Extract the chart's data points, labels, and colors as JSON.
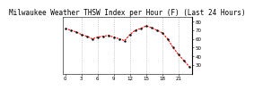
{
  "title": "Milwaukee Weather THSW Index per Hour (F) (Last 24 Hours)",
  "background_color": "#ffffff",
  "plot_bg_color": "#ffffff",
  "line_color": "#ff0000",
  "marker_color": "#000000",
  "grid_color": "#aaaaaa",
  "y_values": [
    72,
    70,
    68,
    65,
    63,
    60,
    62,
    63,
    64,
    62,
    60,
    58,
    65,
    70,
    72,
    75,
    73,
    70,
    67,
    60,
    50,
    42,
    35,
    28
  ],
  "x_values": [
    0,
    1,
    2,
    3,
    4,
    5,
    6,
    7,
    8,
    9,
    10,
    11,
    12,
    13,
    14,
    15,
    16,
    17,
    18,
    19,
    20,
    21,
    22,
    23
  ],
  "x_tick_labels": [
    "0",
    "",
    "",
    "3",
    "",
    "",
    "6",
    "",
    "",
    "9",
    "",
    "",
    "12",
    "",
    "",
    "15",
    "",
    "",
    "18",
    "",
    "",
    "21",
    "",
    ""
  ],
  "ylim": [
    20,
    85
  ],
  "ytick_values": [
    80,
    70,
    60,
    50,
    40,
    30
  ],
  "title_fontsize": 5.5,
  "tick_fontsize": 4,
  "line_width": 0.8,
  "marker_size": 1.5
}
